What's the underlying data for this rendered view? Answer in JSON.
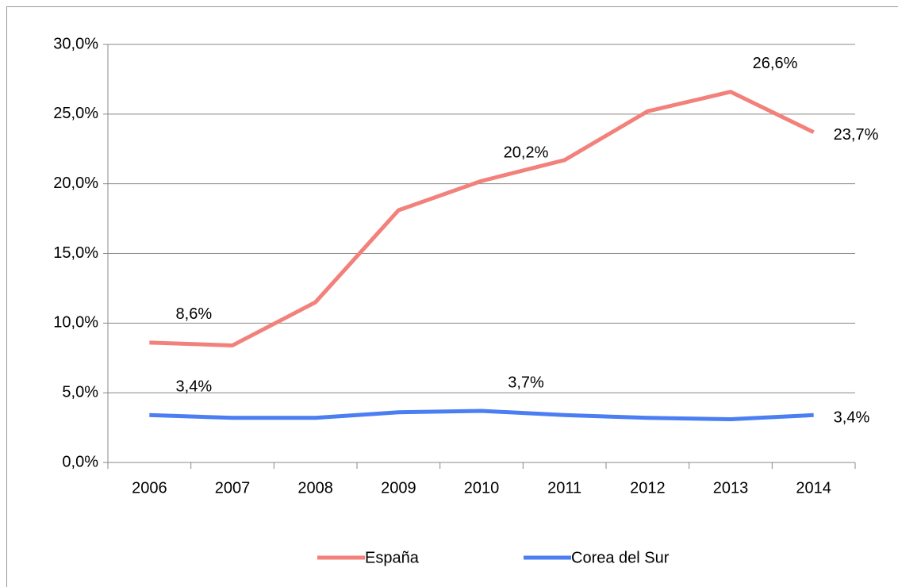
{
  "chart_data": {
    "type": "line",
    "categories": [
      "2006",
      "2007",
      "2008",
      "2009",
      "2010",
      "2011",
      "2012",
      "2013",
      "2014"
    ],
    "series": [
      {
        "name": "España",
        "color": "#f3817b",
        "values": [
          8.6,
          8.4,
          11.5,
          18.1,
          20.2,
          21.7,
          25.2,
          26.6,
          23.7
        ],
        "value_labels": [
          "8,6%",
          null,
          null,
          null,
          "20,2%",
          null,
          null,
          "26,6%",
          "23,7%"
        ]
      },
      {
        "name": "Corea del Sur",
        "color": "#4a7ef2",
        "values": [
          3.4,
          3.2,
          3.2,
          3.6,
          3.7,
          3.4,
          3.2,
          3.1,
          3.4
        ],
        "value_labels": [
          "3,4%",
          null,
          null,
          null,
          "3,7%",
          null,
          null,
          null,
          "3,4%"
        ]
      }
    ],
    "ylim": [
      0,
      30
    ],
    "yticks": [
      {
        "value": 0,
        "label": "0,0%"
      },
      {
        "value": 5,
        "label": "5,0%"
      },
      {
        "value": 10,
        "label": "10,0%"
      },
      {
        "value": 15,
        "label": "15,0%"
      },
      {
        "value": 20,
        "label": "20,0%"
      },
      {
        "value": 25,
        "label": "25,0%"
      },
      {
        "value": 30,
        "label": "30,0%"
      }
    ],
    "grid": true,
    "legend": "bottom"
  }
}
